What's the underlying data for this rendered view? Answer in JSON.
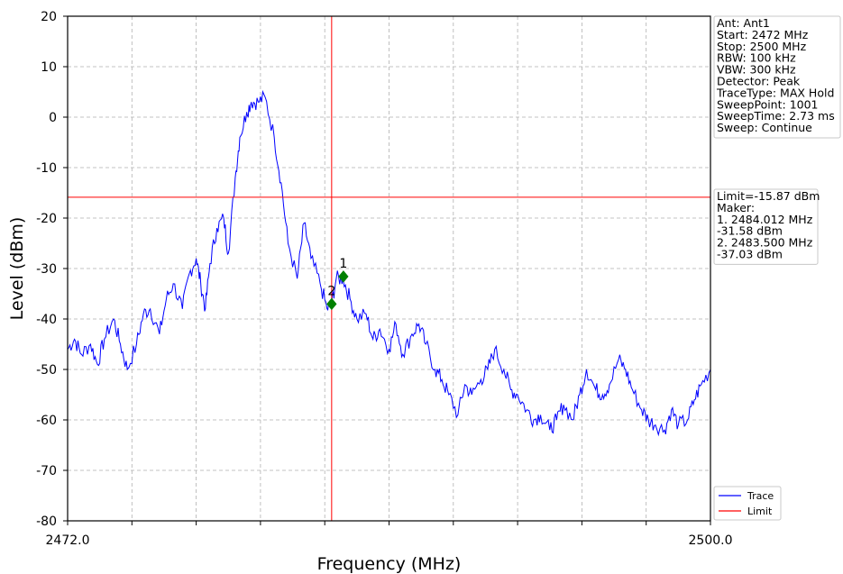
{
  "chart_data": {
    "type": "line",
    "xlabel": "Frequency (MHz)",
    "ylabel": "Level (dBm)",
    "xlim": [
      2472.0,
      2500.0
    ],
    "ylim": [
      -80,
      20
    ],
    "x_tick_labels": [
      "2472.0",
      "2500.0"
    ],
    "y_ticks": [
      20,
      10,
      0,
      -10,
      -20,
      -30,
      -40,
      -50,
      -60,
      -70,
      -80
    ],
    "grid": true,
    "limit_line_dbm": -15.87,
    "vertical_cursor_mhz": 2483.5,
    "series": [
      {
        "name": "Trace",
        "color": "#0000ff",
        "x": [
          2472.0,
          2472.3,
          2472.6,
          2473.0,
          2473.3,
          2473.6,
          2474.0,
          2474.3,
          2474.6,
          2475.0,
          2475.3,
          2475.6,
          2476.0,
          2476.3,
          2476.6,
          2477.0,
          2477.3,
          2477.6,
          2477.8,
          2478.0,
          2478.2,
          2478.5,
          2478.8,
          2479.0,
          2479.3,
          2479.5,
          2479.8,
          2480.0,
          2480.3,
          2480.6,
          2481.0,
          2481.3,
          2481.6,
          2482.0,
          2482.3,
          2482.6,
          2483.0,
          2483.3,
          2483.5,
          2483.7,
          2484.0,
          2484.3,
          2484.6,
          2485.0,
          2485.3,
          2485.6,
          2486.0,
          2486.3,
          2486.6,
          2487.0,
          2487.3,
          2487.6,
          2488.0,
          2488.3,
          2488.6,
          2489.0,
          2489.3,
          2489.6,
          2490.0,
          2490.3,
          2490.6,
          2491.0,
          2491.3,
          2491.6,
          2492.0,
          2492.3,
          2492.6,
          2493.0,
          2493.3,
          2493.6,
          2494.0,
          2494.3,
          2494.6,
          2495.0,
          2495.3,
          2495.6,
          2496.0,
          2496.3,
          2496.6,
          2497.0,
          2497.3,
          2497.6,
          2498.0,
          2498.3,
          2498.6,
          2499.0,
          2499.3,
          2499.6,
          2500.0
        ],
        "y": [
          -46,
          -44,
          -47,
          -45,
          -49,
          -44,
          -40,
          -45,
          -50,
          -45,
          -39,
          -38,
          -43,
          -36,
          -33,
          -38,
          -31,
          -28,
          -33,
          -38,
          -29,
          -22,
          -20,
          -27,
          -12,
          -4,
          1,
          3,
          3,
          4,
          -4,
          -13,
          -25,
          -32,
          -21,
          -28,
          -33,
          -38,
          -37,
          -32,
          -32,
          -36,
          -40,
          -39,
          -44,
          -42,
          -46,
          -41,
          -47,
          -43,
          -41,
          -45,
          -50,
          -52,
          -55,
          -59,
          -53,
          -55,
          -52,
          -50,
          -46,
          -50,
          -54,
          -55,
          -58,
          -60,
          -59,
          -62,
          -60,
          -57,
          -60,
          -55,
          -50,
          -54,
          -55,
          -53,
          -48,
          -50,
          -54,
          -58,
          -60,
          -61,
          -62,
          -58,
          -61,
          -60,
          -56,
          -53,
          -50
        ]
      },
      {
        "name": "Limit",
        "color": "#ff0000"
      }
    ],
    "markers": [
      {
        "label": "1",
        "x": 2484.012,
        "y": -31.58,
        "freq_text": "2484.012 MHz",
        "level_text": "-31.58 dBm"
      },
      {
        "label": "2",
        "x": 2483.5,
        "y": -37.03,
        "freq_text": "2483.500 MHz",
        "level_text": "-37.03 dBm"
      }
    ],
    "info_box": [
      "Ant: Ant1",
      "Start: 2472 MHz",
      "Stop: 2500 MHz",
      "RBW: 100 kHz",
      "VBW: 300 kHz",
      "Detector: Peak",
      "TraceType: MAX Hold",
      "SweepPoint: 1001",
      "SweepTime: 2.73 ms",
      "Sweep: Continue"
    ],
    "limit_box": [
      "Limit=-15.87 dBm",
      "Maker:",
      "1. 2484.012 MHz",
      "    -31.58 dBm",
      "2. 2483.500 MHz",
      "    -37.03 dBm"
    ],
    "legend": [
      "Trace",
      "Limit"
    ],
    "marker_color": "#008000"
  }
}
